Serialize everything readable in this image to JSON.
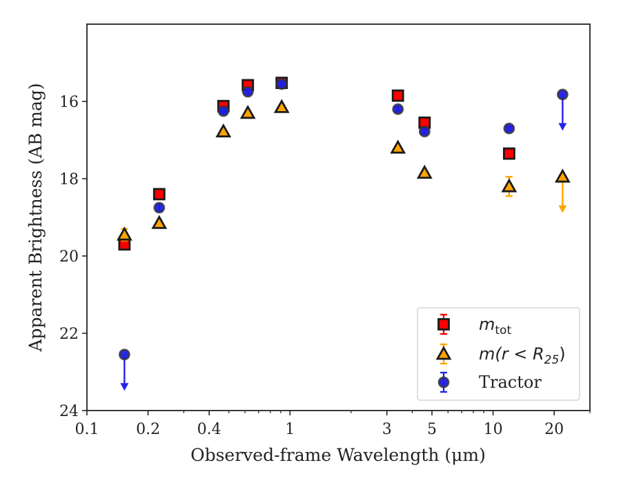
{
  "chart_data": {
    "type": "scatter",
    "title": "",
    "xlabel": "Observed-frame Wavelength (μm)",
    "ylabel": "Apparent Brightness (AB mag)",
    "xscale": "log",
    "xlim": [
      0.1,
      30
    ],
    "ylim": [
      24,
      14.0
    ],
    "y_inverted": true,
    "x_ticks": [
      {
        "value": 0.1,
        "label": "0.1"
      },
      {
        "value": 0.2,
        "label": "0.2"
      },
      {
        "value": 0.4,
        "label": "0.4"
      },
      {
        "value": 1,
        "label": "1"
      },
      {
        "value": 3,
        "label": "3"
      },
      {
        "value": 5,
        "label": "5"
      },
      {
        "value": 10,
        "label": "10"
      },
      {
        "value": 20,
        "label": "20"
      }
    ],
    "y_ticks": [
      {
        "value": 16,
        "label": "16"
      },
      {
        "value": 18,
        "label": "18"
      },
      {
        "value": 20,
        "label": "20"
      },
      {
        "value": 22,
        "label": "22"
      },
      {
        "value": 24,
        "label": "24"
      }
    ],
    "grid": false,
    "legend_position": "bottom-right",
    "series": [
      {
        "name": "m_tot",
        "legend_main": "m",
        "legend_sub": "tot",
        "marker": "square",
        "color": "#ff0000",
        "edge": "#1a1a1a",
        "errcolor": "#ff0000",
        "points": [
          {
            "x": 0.153,
            "y": 19.7,
            "err": 0.1
          },
          {
            "x": 0.227,
            "y": 18.4,
            "err": 0.08
          },
          {
            "x": 0.47,
            "y": 16.12,
            "err": 0.05
          },
          {
            "x": 0.62,
            "y": 15.58,
            "err": 0.05
          },
          {
            "x": 0.91,
            "y": 15.52,
            "err": 0.05
          },
          {
            "x": 3.4,
            "y": 15.85,
            "err": 0.05
          },
          {
            "x": 4.6,
            "y": 16.55,
            "err": 0.05
          },
          {
            "x": 12.0,
            "y": 17.35,
            "err": 0.05
          }
        ]
      },
      {
        "name": "m(r < R25)",
        "legend_main": "m(r < R",
        "legend_sub": "25",
        "legend_tail": ")",
        "marker": "triangle",
        "color": "#ffa500",
        "edge": "#1a1a1a",
        "errcolor": "#ffa500",
        "points": [
          {
            "x": 0.153,
            "y": 19.45,
            "err": 0.15
          },
          {
            "x": 0.227,
            "y": 19.15,
            "err": 0.05
          },
          {
            "x": 0.47,
            "y": 16.78,
            "err": 0.05
          },
          {
            "x": 0.62,
            "y": 16.3,
            "err": 0.05
          },
          {
            "x": 0.91,
            "y": 16.15,
            "err": 0.05
          },
          {
            "x": 3.4,
            "y": 17.2,
            "err": 0.05
          },
          {
            "x": 4.6,
            "y": 17.85,
            "err": 0.05
          },
          {
            "x": 12.0,
            "y": 18.2,
            "err": 0.25
          },
          {
            "x": 22.0,
            "y": 17.95,
            "upper_limit": true,
            "arrow_to": 18.85
          }
        ]
      },
      {
        "name": "Tractor",
        "legend_main": "Tractor",
        "marker": "circle",
        "color": "#1f1fe0",
        "edge": "#333333",
        "errcolor": "#2323e8",
        "points": [
          {
            "x": 0.153,
            "y": 22.55,
            "upper_limit": true,
            "arrow_to": 23.45
          },
          {
            "x": 0.227,
            "y": 18.75,
            "err": 0.08
          },
          {
            "x": 0.47,
            "y": 16.25,
            "err": 0.05
          },
          {
            "x": 0.62,
            "y": 15.75,
            "err": 0.05
          },
          {
            "x": 0.91,
            "y": 15.55,
            "err": 0.05
          },
          {
            "x": 3.4,
            "y": 16.2,
            "err": 0.05
          },
          {
            "x": 4.6,
            "y": 16.78,
            "err": 0.05
          },
          {
            "x": 12.0,
            "y": 16.7,
            "err": 0.05
          },
          {
            "x": 22.0,
            "y": 15.82,
            "upper_limit": true,
            "arrow_to": 16.72
          }
        ]
      }
    ]
  }
}
